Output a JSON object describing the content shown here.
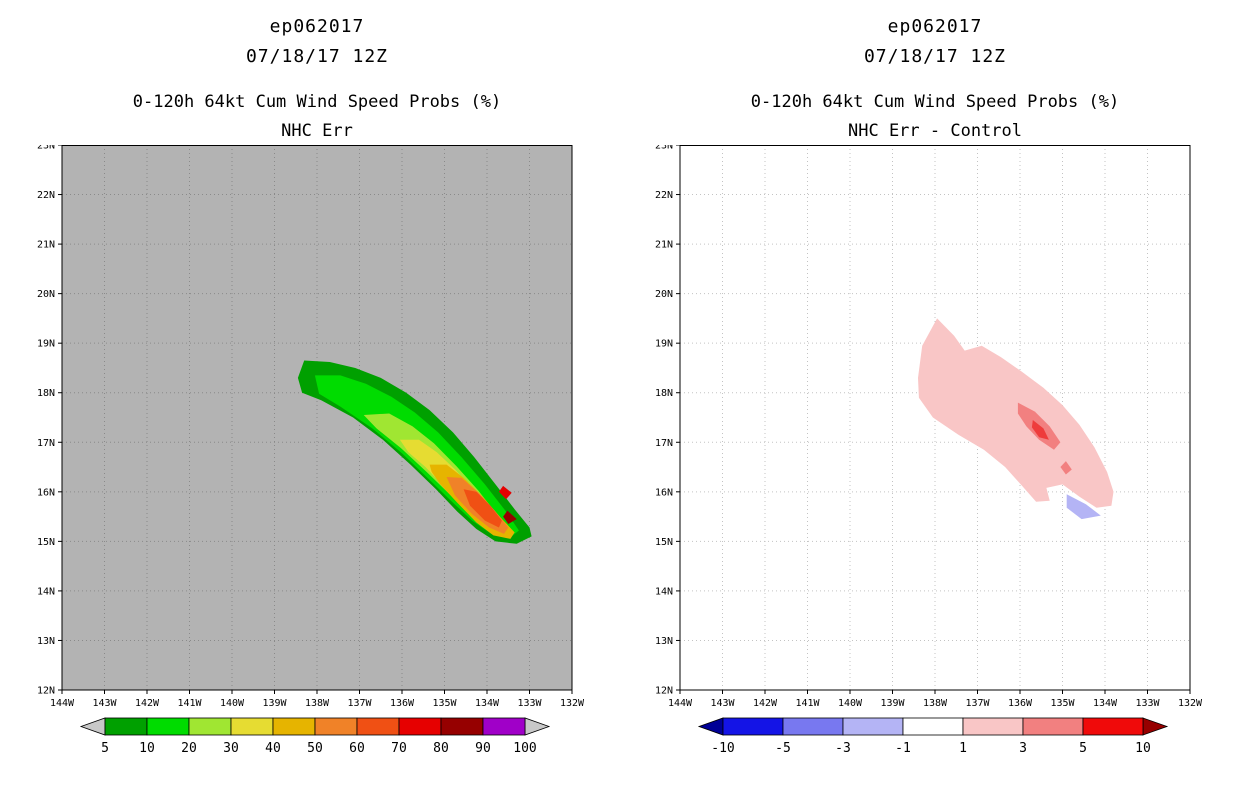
{
  "chart_data": [
    {
      "type": "filled_contour_map",
      "storm_id": "ep062017",
      "init_time": "07/18/17 12Z",
      "title": "0-120h 64kt Cum Wind Speed Probs (%)",
      "subtitle": "NHC Err",
      "map": {
        "bg": "#b3b3b3",
        "grid_color": "#8a8a8a",
        "lon_range": [
          144,
          132
        ],
        "lat_range": [
          12,
          23
        ],
        "lon_labels": [
          "144W",
          "143W",
          "142W",
          "141W",
          "140W",
          "139W",
          "138W",
          "137W",
          "136W",
          "135W",
          "134W",
          "133W",
          "132W"
        ],
        "lat_labels": [
          "23N",
          "22N",
          "21N",
          "20N",
          "19N",
          "18N",
          "17N",
          "16N",
          "15N",
          "14N",
          "13N",
          "12N"
        ],
        "contours": [
          {
            "level": 5,
            "color": "#00a000",
            "points": [
              [
                138.45,
                18.3
              ],
              [
                138.3,
                18.65
              ],
              [
                137.7,
                18.62
              ],
              [
                137.1,
                18.5
              ],
              [
                136.5,
                18.3
              ],
              [
                135.9,
                18.0
              ],
              [
                135.35,
                17.65
              ],
              [
                134.8,
                17.2
              ],
              [
                134.3,
                16.7
              ],
              [
                133.8,
                16.15
              ],
              [
                133.35,
                15.65
              ],
              [
                133.0,
                15.28
              ],
              [
                132.95,
                15.1
              ],
              [
                133.3,
                14.95
              ],
              [
                133.8,
                15.0
              ],
              [
                134.25,
                15.25
              ],
              [
                134.7,
                15.6
              ],
              [
                135.2,
                16.05
              ],
              [
                135.8,
                16.55
              ],
              [
                136.45,
                17.05
              ],
              [
                137.15,
                17.5
              ],
              [
                137.9,
                17.85
              ],
              [
                138.35,
                18.0
              ]
            ]
          },
          {
            "level": 10,
            "color": "#00dc00",
            "points": [
              [
                138.05,
                18.35
              ],
              [
                137.45,
                18.35
              ],
              [
                136.85,
                18.18
              ],
              [
                136.25,
                17.92
              ],
              [
                135.7,
                17.6
              ],
              [
                135.15,
                17.2
              ],
              [
                134.6,
                16.7
              ],
              [
                134.05,
                16.15
              ],
              [
                133.55,
                15.6
              ],
              [
                133.25,
                15.22
              ],
              [
                133.45,
                15.08
              ],
              [
                133.9,
                15.15
              ],
              [
                134.35,
                15.42
              ],
              [
                134.85,
                15.82
              ],
              [
                135.4,
                16.28
              ],
              [
                136.0,
                16.78
              ],
              [
                136.7,
                17.28
              ],
              [
                137.45,
                17.72
              ],
              [
                137.95,
                17.98
              ]
            ]
          },
          {
            "level": 20,
            "color": "#a0e632",
            "points": [
              [
                136.9,
                17.55
              ],
              [
                136.3,
                17.58
              ],
              [
                135.75,
                17.32
              ],
              [
                135.25,
                16.98
              ],
              [
                134.72,
                16.52
              ],
              [
                134.2,
                16.02
              ],
              [
                133.75,
                15.52
              ],
              [
                133.55,
                15.28
              ],
              [
                133.9,
                15.28
              ],
              [
                134.38,
                15.55
              ],
              [
                134.88,
                15.95
              ],
              [
                135.42,
                16.4
              ],
              [
                136.02,
                16.88
              ],
              [
                136.6,
                17.28
              ]
            ]
          },
          {
            "level": 30,
            "color": "#e6dc32",
            "points": [
              [
                136.05,
                17.05
              ],
              [
                135.6,
                17.05
              ],
              [
                135.18,
                16.8
              ],
              [
                134.75,
                16.45
              ],
              [
                134.3,
                16.02
              ],
              [
                133.92,
                15.58
              ],
              [
                133.65,
                15.3
              ],
              [
                133.95,
                15.32
              ],
              [
                134.4,
                15.58
              ],
              [
                134.9,
                16.0
              ],
              [
                135.45,
                16.5
              ],
              [
                135.85,
                16.8
              ]
            ]
          },
          {
            "level": 40,
            "color": "#e6b400",
            "points": [
              [
                135.35,
                16.55
              ],
              [
                134.95,
                16.55
              ],
              [
                134.55,
                16.28
              ],
              [
                134.1,
                15.9
              ],
              [
                133.7,
                15.5
              ],
              [
                133.35,
                15.18
              ],
              [
                133.45,
                15.05
              ],
              [
                133.85,
                15.12
              ],
              [
                134.25,
                15.38
              ],
              [
                134.7,
                15.78
              ],
              [
                135.1,
                16.15
              ],
              [
                135.3,
                16.4
              ]
            ]
          },
          {
            "level": 50,
            "color": "#f08228",
            "points": [
              [
                134.95,
                16.3
              ],
              [
                134.6,
                16.28
              ],
              [
                134.2,
                15.98
              ],
              [
                133.8,
                15.6
              ],
              [
                133.5,
                15.28
              ],
              [
                133.6,
                15.15
              ],
              [
                133.95,
                15.28
              ],
              [
                134.35,
                15.55
              ],
              [
                134.75,
                15.92
              ]
            ]
          },
          {
            "level": 60,
            "color": "#f05014",
            "points": [
              [
                134.55,
                16.05
              ],
              [
                134.25,
                16.0
              ],
              [
                133.92,
                15.72
              ],
              [
                133.65,
                15.42
              ],
              [
                133.72,
                15.28
              ],
              [
                134.05,
                15.42
              ],
              [
                134.4,
                15.72
              ]
            ]
          },
          {
            "level": 70,
            "color": "#e60000",
            "points": [
              [
                133.62,
                16.12
              ],
              [
                133.42,
                15.98
              ],
              [
                133.55,
                15.85
              ],
              [
                133.72,
                16.0
              ]
            ]
          },
          {
            "level": 80,
            "color": "#960000",
            "points": [
              [
                133.52,
                15.62
              ],
              [
                133.3,
                15.45
              ],
              [
                133.5,
                15.35
              ],
              [
                133.62,
                15.5
              ]
            ]
          }
        ]
      },
      "colorbar": {
        "ticks": [
          "5",
          "10",
          "20",
          "30",
          "40",
          "50",
          "60",
          "70",
          "80",
          "90",
          "100"
        ],
        "segment_colors": [
          "#00a000",
          "#00dc00",
          "#a0e632",
          "#e6dc32",
          "#e6b400",
          "#f08228",
          "#f05014",
          "#e60000",
          "#960000",
          "#a000c8"
        ],
        "left_arrow": "#c8c8c8",
        "right_arrow": "#c8c8c8"
      }
    },
    {
      "type": "filled_contour_map_difference",
      "storm_id": "ep062017",
      "init_time": "07/18/17 12Z",
      "title": "0-120h 64kt Cum Wind Speed Probs (%)",
      "subtitle": "NHC Err - Control",
      "map": {
        "bg": "#ffffff",
        "grid_color": "#c3c3c3",
        "lon_range": [
          144,
          132
        ],
        "lat_range": [
          12,
          23
        ],
        "lon_labels": [
          "144W",
          "143W",
          "142W",
          "141W",
          "140W",
          "139W",
          "138W",
          "137W",
          "136W",
          "135W",
          "134W",
          "133W",
          "132W"
        ],
        "lat_labels": [
          "23N",
          "22N",
          "21N",
          "20N",
          "19N",
          "18N",
          "17N",
          "16N",
          "15N",
          "14N",
          "13N",
          "12N"
        ],
        "contours": [
          {
            "level": 1,
            "color": "#f9c6c6",
            "points": [
              [
                138.4,
                18.3
              ],
              [
                138.3,
                18.95
              ],
              [
                137.95,
                19.5
              ],
              [
                137.55,
                19.15
              ],
              [
                137.3,
                18.85
              ],
              [
                136.9,
                18.95
              ],
              [
                136.45,
                18.72
              ],
              [
                135.95,
                18.42
              ],
              [
                135.45,
                18.1
              ],
              [
                135.0,
                17.75
              ],
              [
                134.6,
                17.35
              ],
              [
                134.25,
                16.9
              ],
              [
                133.95,
                16.4
              ],
              [
                133.8,
                16.0
              ],
              [
                133.85,
                15.72
              ],
              [
                134.2,
                15.68
              ],
              [
                134.6,
                15.9
              ],
              [
                135.0,
                16.15
              ],
              [
                135.38,
                16.08
              ],
              [
                135.3,
                15.82
              ],
              [
                135.62,
                15.8
              ],
              [
                135.95,
                16.12
              ],
              [
                136.35,
                16.5
              ],
              [
                136.85,
                16.85
              ],
              [
                137.45,
                17.15
              ],
              [
                138.05,
                17.5
              ],
              [
                138.38,
                17.9
              ]
            ]
          },
          {
            "level": 3,
            "color": "#f28080",
            "points": [
              [
                136.05,
                17.8
              ],
              [
                135.65,
                17.62
              ],
              [
                135.3,
                17.32
              ],
              [
                135.05,
                17.0
              ],
              [
                135.2,
                16.85
              ],
              [
                135.55,
                17.05
              ],
              [
                135.85,
                17.32
              ],
              [
                136.05,
                17.58
              ]
            ]
          },
          {
            "level": 5,
            "color": "#ee3c3c",
            "points": [
              [
                135.7,
                17.45
              ],
              [
                135.45,
                17.28
              ],
              [
                135.32,
                17.05
              ],
              [
                135.55,
                17.1
              ],
              [
                135.72,
                17.3
              ]
            ]
          },
          {
            "level": 3,
            "color": "#f28080",
            "points": [
              [
                134.92,
                16.62
              ],
              [
                134.78,
                16.45
              ],
              [
                134.92,
                16.35
              ],
              [
                135.05,
                16.5
              ]
            ]
          },
          {
            "level": -1,
            "color": "#b4b4f5",
            "points": [
              [
                134.9,
                15.95
              ],
              [
                134.45,
                15.75
              ],
              [
                134.1,
                15.52
              ],
              [
                134.55,
                15.45
              ],
              [
                134.9,
                15.68
              ]
            ]
          }
        ]
      },
      "colorbar": {
        "ticks": [
          "-10",
          "-5",
          "-3",
          "-1",
          "1",
          "3",
          "5",
          "10"
        ],
        "segment_colors": [
          "#1414e6",
          "#7878f0",
          "#b4b4f5",
          "#ffffff",
          "#f9c6c6",
          "#f28080",
          "#f00a0a"
        ],
        "left_arrow": "#000096",
        "right_arrow": "#960000"
      }
    }
  ]
}
